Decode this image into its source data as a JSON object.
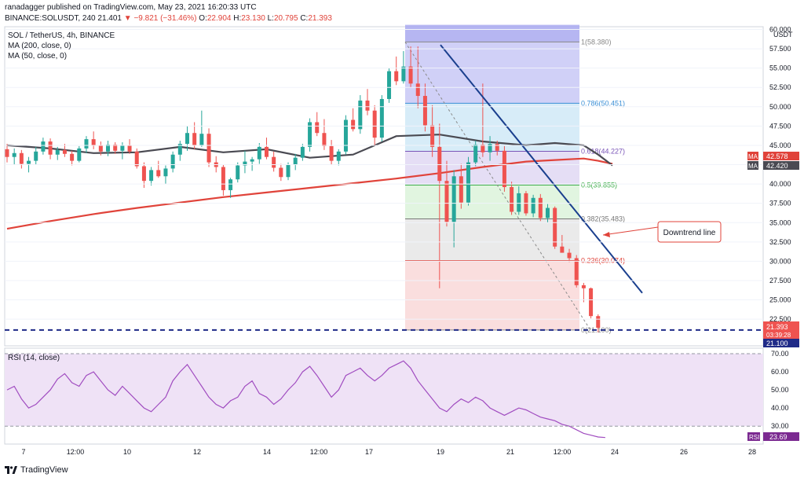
{
  "header": {
    "publisher_line": "ranadagger published on TradingView.com, May 23, 2021 16:20:33 UTC",
    "symbol_line": "BINANCE:SOLUSDT, 240",
    "o_label": "O:",
    "last": "21.401",
    "change": "−9.821 (−31.46%)",
    "o": "22.904",
    "h_label": "H:",
    "h": "23.130",
    "l_label": "L:",
    "l": "20.795",
    "c_label": "C:",
    "c": "21.393"
  },
  "legend": {
    "title": "SOL / TetherUS, 4h, BINANCE",
    "ma200": "MA (200, close, 0)",
    "ma50": "MA (50, close, 0)",
    "rsi": "RSI (14, close)"
  },
  "colors": {
    "up": "#26a69a",
    "down": "#ef5350",
    "ma200": "#e0433a",
    "ma50": "#4a4a52",
    "trendline": "#1a3f8e",
    "rsi": "#a04cc0",
    "rsi_band": "#efe2f6",
    "dashed": "#1f2a87"
  },
  "chart_data": {
    "type": "candlestick",
    "currency": "USDT",
    "ylim": [
      20,
      61
    ],
    "price_ticks": [
      "22.500",
      "25.000",
      "27.500",
      "30.000",
      "32.500",
      "35.000",
      "37.500",
      "40.000",
      "42.500",
      "45.000",
      "47.500",
      "50.000",
      "52.500",
      "55.000",
      "57.500",
      "60.000"
    ],
    "x_ticks": [
      "7",
      "12:00",
      "10",
      "12",
      "14",
      "12:00",
      "17",
      "19",
      "21",
      "12:00",
      "24",
      "26",
      "28"
    ],
    "fib_levels": [
      {
        "label": "1(58.380)",
        "value": 58.38
      },
      {
        "label": "0.786(50.451)",
        "value": 50.451
      },
      {
        "label": "0.618(44.227)",
        "value": 44.227
      },
      {
        "label": "0.5(39.855)",
        "value": 39.855
      },
      {
        "label": "0.382(35.483)",
        "value": 35.483
      },
      {
        "label": "0.236(30.074)",
        "value": 30.074
      },
      {
        "label": "0(21.100)",
        "value": 21.1
      }
    ],
    "annotation": "Downtrend line",
    "ma_labels": [
      {
        "name": "MA",
        "value": "42.578"
      },
      {
        "name": "MA",
        "value": "42.420"
      }
    ],
    "price_label": "21.393",
    "countdown": "03:39:28",
    "support_label": "21.100",
    "support_value": 21.1,
    "rsi_ticks": [
      "30.00",
      "40.00",
      "50.00",
      "60.00",
      "70.00"
    ],
    "rsi_ylim": [
      22,
      76
    ],
    "rsi_value_label": "23.69",
    "rsi_name": "RSI",
    "candles": [
      [
        44.5,
        45.2,
        42.8,
        43.5
      ],
      [
        43.5,
        44.6,
        42.5,
        44.0
      ],
      [
        44.0,
        44.4,
        42.0,
        42.6
      ],
      [
        42.6,
        43.5,
        41.5,
        43.0
      ],
      [
        43.0,
        44.8,
        42.5,
        44.2
      ],
      [
        44.2,
        46.0,
        43.8,
        45.5
      ],
      [
        45.5,
        45.9,
        43.2,
        43.8
      ],
      [
        43.8,
        44.8,
        43.1,
        44.4
      ],
      [
        44.4,
        45.2,
        43.5,
        43.9
      ],
      [
        43.9,
        44.3,
        42.4,
        43.0
      ],
      [
        43.0,
        44.9,
        42.8,
        44.6
      ],
      [
        44.6,
        46.2,
        44.0,
        45.8
      ],
      [
        45.8,
        46.8,
        44.5,
        45.0
      ],
      [
        45.0,
        45.5,
        43.7,
        44.2
      ],
      [
        44.2,
        45.6,
        43.6,
        45.1
      ],
      [
        45.1,
        45.4,
        43.9,
        44.3
      ],
      [
        44.3,
        45.4,
        43.2,
        45.0
      ],
      [
        45.0,
        45.8,
        43.9,
        44.2
      ],
      [
        44.2,
        44.6,
        42.0,
        42.3
      ],
      [
        42.3,
        42.8,
        39.5,
        40.4
      ],
      [
        40.4,
        42.2,
        39.8,
        41.8
      ],
      [
        41.8,
        43.0,
        40.8,
        41.0
      ],
      [
        41.0,
        42.4,
        40.0,
        42.0
      ],
      [
        42.0,
        44.2,
        41.5,
        43.8
      ],
      [
        43.8,
        45.6,
        43.0,
        45.2
      ],
      [
        45.2,
        47.5,
        44.3,
        46.6
      ],
      [
        46.6,
        48.0,
        44.5,
        45.0
      ],
      [
        45.0,
        49.5,
        44.8,
        46.5
      ],
      [
        46.5,
        47.2,
        42.2,
        42.8
      ],
      [
        42.8,
        43.6,
        41.5,
        42.2
      ],
      [
        42.2,
        42.5,
        38.5,
        39.2
      ],
      [
        39.2,
        40.8,
        38.2,
        40.6
      ],
      [
        40.6,
        42.8,
        40.2,
        42.4
      ],
      [
        42.4,
        44.3,
        41.4,
        42.9
      ],
      [
        42.9,
        43.5,
        41.7,
        43.2
      ],
      [
        43.2,
        45.3,
        42.6,
        44.8
      ],
      [
        44.8,
        46.0,
        43.2,
        43.5
      ],
      [
        43.5,
        44.2,
        41.6,
        42.1
      ],
      [
        42.1,
        42.6,
        40.4,
        40.9
      ],
      [
        40.9,
        42.8,
        40.5,
        42.5
      ],
      [
        42.5,
        43.9,
        41.8,
        43.4
      ],
      [
        43.4,
        45.2,
        43.0,
        44.8
      ],
      [
        44.8,
        48.5,
        44.2,
        48.0
      ],
      [
        48.0,
        49.3,
        46.2,
        46.6
      ],
      [
        46.6,
        48.4,
        44.4,
        44.9
      ],
      [
        44.9,
        45.7,
        42.5,
        43.0
      ],
      [
        43.0,
        44.5,
        42.4,
        44.2
      ],
      [
        44.2,
        48.9,
        43.8,
        48.3
      ],
      [
        48.3,
        49.8,
        46.8,
        47.1
      ],
      [
        47.1,
        51.5,
        46.5,
        50.8
      ],
      [
        50.8,
        52.3,
        48.9,
        49.5
      ],
      [
        49.5,
        50.2,
        45.0,
        46.0
      ],
      [
        46.0,
        51.5,
        45.5,
        51.0
      ],
      [
        51.0,
        55.0,
        50.5,
        54.6
      ],
      [
        54.6,
        56.5,
        52.8,
        53.3
      ],
      [
        53.3,
        57.2,
        53.0,
        55.2
      ],
      [
        55.2,
        57.8,
        52.5,
        53.0
      ],
      [
        53.0,
        57.8,
        49.8,
        51.4
      ],
      [
        51.4,
        53.0,
        46.8,
        47.6
      ],
      [
        47.6,
        50.2,
        43.5,
        44.8
      ],
      [
        44.8,
        47.8,
        26.5,
        40.4
      ],
      [
        40.4,
        43.0,
        34.5,
        35.1
      ],
      [
        35.1,
        41.8,
        31.8,
        41.0
      ],
      [
        41.0,
        42.6,
        36.8,
        37.6
      ],
      [
        37.6,
        43.5,
        37.2,
        42.8
      ],
      [
        42.8,
        45.6,
        42.3,
        45.1
      ],
      [
        45.1,
        53.0,
        43.5,
        44.1
      ],
      [
        44.1,
        46.2,
        43.0,
        45.2
      ],
      [
        45.2,
        45.6,
        43.7,
        44.3
      ],
      [
        44.3,
        44.9,
        39.0,
        39.6
      ],
      [
        39.6,
        40.3,
        36.0,
        36.4
      ],
      [
        36.4,
        39.7,
        36.0,
        38.8
      ],
      [
        38.8,
        39.1,
        35.9,
        36.2
      ],
      [
        36.2,
        38.6,
        35.7,
        38.2
      ],
      [
        38.2,
        38.7,
        35.2,
        35.6
      ],
      [
        35.6,
        37.4,
        35.0,
        36.9
      ],
      [
        36.9,
        37.1,
        31.6,
        31.9
      ],
      [
        31.9,
        33.4,
        31.2,
        31.1
      ],
      [
        31.1,
        31.6,
        29.9,
        30.4
      ],
      [
        30.4,
        30.8,
        26.6,
        26.9
      ],
      [
        26.9,
        27.2,
        24.7,
        26.5
      ],
      [
        26.5,
        26.6,
        22.6,
        22.9
      ],
      [
        22.9,
        23.13,
        20.8,
        21.393
      ]
    ],
    "ma200": [
      34.2,
      35.2,
      36.1,
      36.9,
      37.6,
      38.3,
      38.9,
      39.5,
      40.1,
      40.7,
      41.4,
      42.2,
      42.9,
      43.1,
      43.3,
      43.0,
      42.6
    ],
    "ma50": [
      45.0,
      44.6,
      44.0,
      44.1,
      44.8,
      44.1,
      44.5,
      43.4,
      43.8,
      46.2,
      46.4,
      45.5,
      45.0,
      45.3,
      45.0,
      43.8,
      42.4
    ],
    "ma_x": [
      0,
      6,
      12,
      18,
      24,
      30,
      36,
      42,
      48,
      54,
      60,
      66,
      72,
      76,
      80,
      82,
      84
    ],
    "rsi": [
      50,
      52,
      45,
      40,
      42,
      46,
      50,
      56,
      59,
      54,
      52,
      58,
      60,
      55,
      50,
      47,
      52,
      48,
      44,
      40,
      38,
      42,
      46,
      55,
      60,
      64,
      58,
      52,
      46,
      42,
      40,
      44,
      46,
      52,
      55,
      48,
      46,
      42,
      45,
      50,
      54,
      60,
      63,
      58,
      52,
      46,
      50,
      58,
      60,
      62,
      58,
      55,
      58,
      62,
      64,
      66,
      62,
      55,
      50,
      45,
      40,
      38,
      42,
      45,
      43,
      46,
      44,
      40,
      38,
      36,
      38,
      40,
      39,
      37,
      35,
      34,
      33,
      31,
      30,
      28,
      26,
      25,
      24,
      23.69
    ]
  }
}
